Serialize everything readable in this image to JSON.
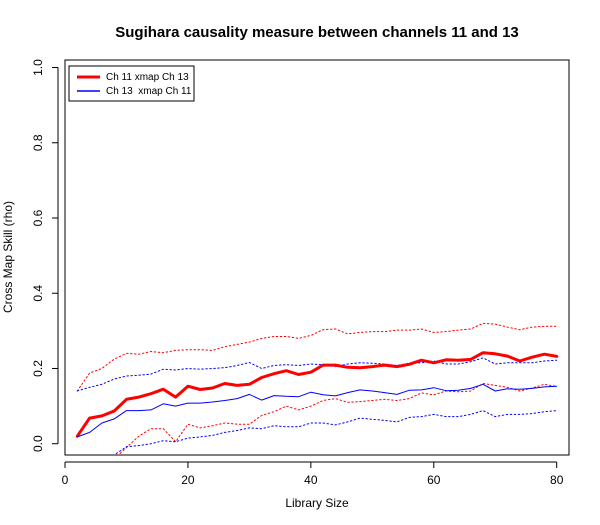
{
  "chart_data": {
    "type": "line",
    "title": "Sugihara causality measure between channels  11 and 13",
    "xlabel": "Library Size",
    "ylabel": "Cross Map Skill (rho)",
    "xlim": [
      0,
      82
    ],
    "ylim": [
      -0.03,
      1.02
    ],
    "xticks": [
      0,
      20,
      40,
      60,
      80
    ],
    "yticks": [
      0.0,
      0.2,
      0.4,
      0.6,
      0.8,
      1.0
    ],
    "xtick_labels": [
      "0",
      "20",
      "40",
      "60",
      "80"
    ],
    "ytick_labels": [
      "0.0",
      "0.2",
      "0.4",
      "0.6",
      "0.8",
      "1.0"
    ],
    "grid": false,
    "legend_position": "top-left",
    "x": [
      2,
      4,
      6,
      8,
      10,
      12,
      14,
      16,
      18,
      20,
      22,
      24,
      26,
      28,
      30,
      32,
      34,
      36,
      38,
      40,
      42,
      44,
      46,
      48,
      50,
      52,
      54,
      56,
      58,
      60,
      62,
      64,
      66,
      68,
      70,
      72,
      74,
      76,
      78,
      80
    ],
    "series": [
      {
        "name": "Ch 11 xmap Ch 13",
        "color": "#ff0000",
        "style": "solid-thick",
        "values": [
          0.02,
          0.068,
          0.074,
          0.087,
          0.118,
          0.124,
          0.133,
          0.145,
          0.124,
          0.153,
          0.144,
          0.148,
          0.16,
          0.155,
          0.158,
          0.176,
          0.186,
          0.194,
          0.184,
          0.19,
          0.209,
          0.209,
          0.203,
          0.202,
          0.205,
          0.209,
          0.205,
          0.211,
          0.222,
          0.215,
          0.223,
          0.222,
          0.224,
          0.242,
          0.239,
          0.233,
          0.22,
          0.23,
          0.238,
          0.232
        ]
      },
      {
        "name": "Ch 13  xmap Ch 11",
        "color": "#0000ff",
        "style": "solid-thin",
        "values": [
          0.018,
          0.03,
          0.055,
          0.066,
          0.088,
          0.088,
          0.09,
          0.106,
          0.1,
          0.108,
          0.108,
          0.111,
          0.115,
          0.12,
          0.131,
          0.116,
          0.128,
          0.126,
          0.125,
          0.137,
          0.13,
          0.127,
          0.136,
          0.143,
          0.14,
          0.136,
          0.131,
          0.142,
          0.143,
          0.149,
          0.141,
          0.142,
          0.147,
          0.158,
          0.14,
          0.146,
          0.145,
          0.147,
          0.151,
          0.153
        ]
      },
      {
        "name": "",
        "color": "#ff0000",
        "style": "dotted",
        "values": [
          0.14,
          0.188,
          0.2,
          0.225,
          0.24,
          0.238,
          0.245,
          0.242,
          0.248,
          0.25,
          0.25,
          0.248,
          0.258,
          0.264,
          0.27,
          0.28,
          0.285,
          0.285,
          0.28,
          0.288,
          0.303,
          0.305,
          0.292,
          0.296,
          0.298,
          0.298,
          0.302,
          0.302,
          0.305,
          0.296,
          0.298,
          0.302,
          0.305,
          0.32,
          0.318,
          0.31,
          0.303,
          0.31,
          0.312,
          0.312
        ]
      },
      {
        "name": "",
        "color": "#ff0000",
        "style": "dotted",
        "values": [
          -0.1,
          -0.07,
          -0.06,
          -0.04,
          -0.01,
          0.02,
          0.04,
          0.04,
          0.005,
          0.052,
          0.042,
          0.048,
          0.055,
          0.052,
          0.052,
          0.075,
          0.085,
          0.1,
          0.09,
          0.1,
          0.115,
          0.12,
          0.11,
          0.112,
          0.115,
          0.118,
          0.115,
          0.12,
          0.135,
          0.13,
          0.14,
          0.138,
          0.14,
          0.16,
          0.155,
          0.15,
          0.14,
          0.148,
          0.158,
          0.152
        ]
      },
      {
        "name": "",
        "color": "#0000ff",
        "style": "dotted",
        "values": [
          0.14,
          0.15,
          0.158,
          0.172,
          0.18,
          0.182,
          0.185,
          0.198,
          0.196,
          0.2,
          0.198,
          0.2,
          0.202,
          0.208,
          0.216,
          0.2,
          0.208,
          0.21,
          0.208,
          0.212,
          0.21,
          0.205,
          0.212,
          0.215,
          0.214,
          0.212,
          0.208,
          0.214,
          0.215,
          0.22,
          0.212,
          0.212,
          0.218,
          0.228,
          0.212,
          0.215,
          0.215,
          0.215,
          0.22,
          0.222
        ]
      },
      {
        "name": "",
        "color": "#0000ff",
        "style": "dotted",
        "values": [
          -0.1,
          -0.08,
          -0.05,
          -0.03,
          -0.008,
          -0.005,
          0.0,
          0.008,
          0.005,
          0.015,
          0.018,
          0.022,
          0.03,
          0.035,
          0.042,
          0.04,
          0.048,
          0.045,
          0.045,
          0.055,
          0.055,
          0.05,
          0.058,
          0.068,
          0.065,
          0.062,
          0.058,
          0.07,
          0.072,
          0.078,
          0.072,
          0.072,
          0.078,
          0.088,
          0.072,
          0.078,
          0.078,
          0.08,
          0.085,
          0.088
        ]
      }
    ]
  }
}
